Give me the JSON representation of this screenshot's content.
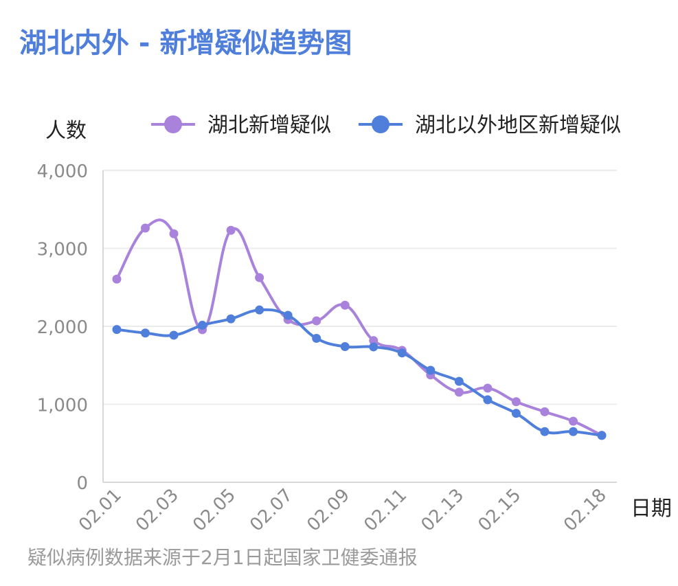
{
  "title": "湖北内外 - 新增疑似趋势图",
  "footnote": "疑似病例数据来源于2月1日起国家卫健委通报",
  "colors": {
    "title": "#4f7fdb",
    "hubei": "#a882db",
    "outside": "#4f7fdb",
    "axis_text": "#8a8a8a",
    "grid": "#ececec"
  },
  "chart_data": {
    "type": "line",
    "ylabel": "人数",
    "xlabel": "日期",
    "ylim": [
      0,
      4000
    ],
    "yticks": [
      "0",
      "1,000",
      "2,000",
      "3,000",
      "4,000"
    ],
    "ytick_values": [
      0,
      1000,
      2000,
      3000,
      4000
    ],
    "xticks": [
      "02.01",
      "02.03",
      "02.05",
      "02.07",
      "02.09",
      "02.11",
      "02.13",
      "02.15",
      "02.18"
    ],
    "xtick_indices": [
      0,
      2,
      4,
      6,
      8,
      10,
      12,
      14,
      17
    ],
    "x": [
      "02.01",
      "02.02",
      "02.03",
      "02.04",
      "02.05",
      "02.06",
      "02.07",
      "02.08",
      "02.09",
      "02.10",
      "02.11",
      "02.12",
      "02.13",
      "02.14",
      "02.15",
      "02.16",
      "02.17",
      "02.18"
    ],
    "legend_position": "top",
    "grid": true,
    "series": [
      {
        "name": "湖北新增疑似",
        "color": "#a882db",
        "values": [
          2606,
          3260,
          3187,
          1957,
          3231,
          2625,
          2087,
          2070,
          2271,
          1817,
          1692,
          1376,
          1155,
          1207,
          1033,
          904,
          783,
          602
        ]
      },
      {
        "name": "湖北以外地区新增疑似",
        "color": "#4f7fdb",
        "values": [
          1959,
          1914,
          1886,
          2014,
          2096,
          2210,
          2141,
          1846,
          1740,
          1736,
          1658,
          1436,
          1294,
          1058,
          884,
          650,
          650,
          600
        ]
      }
    ]
  }
}
